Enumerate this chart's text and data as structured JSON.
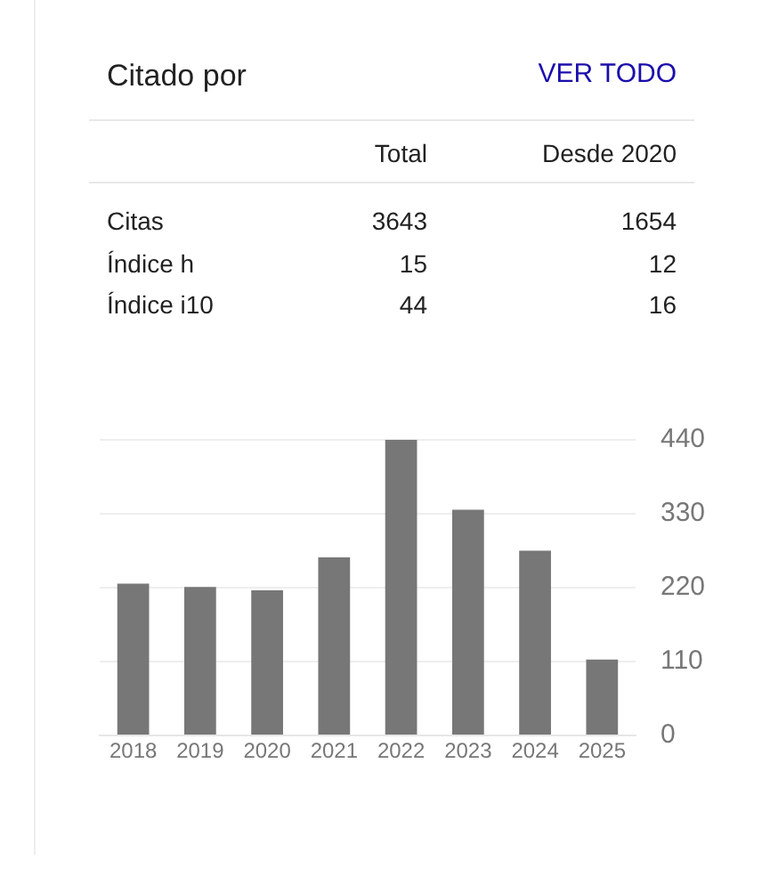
{
  "chart_data": [
    {
      "type": "other",
      "title": "Citado por",
      "annotations": [
        "VER TODO",
        "Total",
        "Desde 2020",
        "Citas",
        "3643",
        "1654",
        "Índice h",
        "15",
        "12",
        "Índice i10",
        "44",
        "16"
      ]
    },
    {
      "type": "bar",
      "categories": [
        "2018",
        "2019",
        "2020",
        "2021",
        "2022",
        "2023",
        "2024",
        "2025"
      ],
      "values": [
        226,
        221,
        216,
        265,
        440,
        336,
        275,
        113
      ],
      "color": "#777777",
      "ylim": [
        0,
        440
      ],
      "yticks": [
        0,
        110,
        220,
        330,
        440
      ],
      "grid": "y",
      "legend": false
    }
  ]
}
